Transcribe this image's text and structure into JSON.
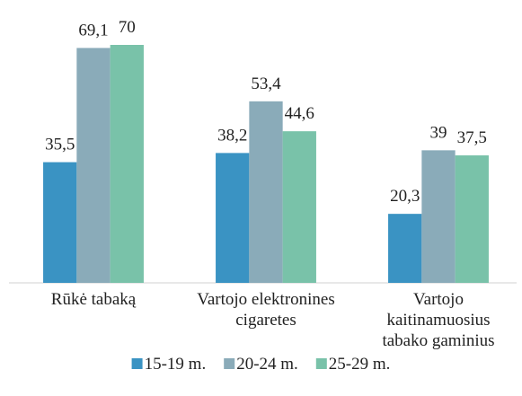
{
  "chart_data": {
    "type": "bar",
    "categories": [
      "Rūkė tabaką",
      "Vartojo elektronines cigaretes",
      "Vartojo kaitinamuosius tabako gaminius"
    ],
    "series": [
      {
        "name": "15-19 m.",
        "color": "#3a93c3",
        "values": [
          35.5,
          38.2,
          20.3
        ],
        "value_labels": [
          "35,5",
          "38,2",
          "20,3"
        ]
      },
      {
        "name": "20-24 m.",
        "color": "#8aabb9",
        "values": [
          69.1,
          53.4,
          39
        ],
        "value_labels": [
          "69,1",
          "53,4",
          "39"
        ]
      },
      {
        "name": "25-29 m.",
        "color": "#79c2a9",
        "values": [
          70,
          44.6,
          37.5
        ],
        "value_labels": [
          "70",
          "44,6",
          "37,5"
        ]
      }
    ]
  }
}
